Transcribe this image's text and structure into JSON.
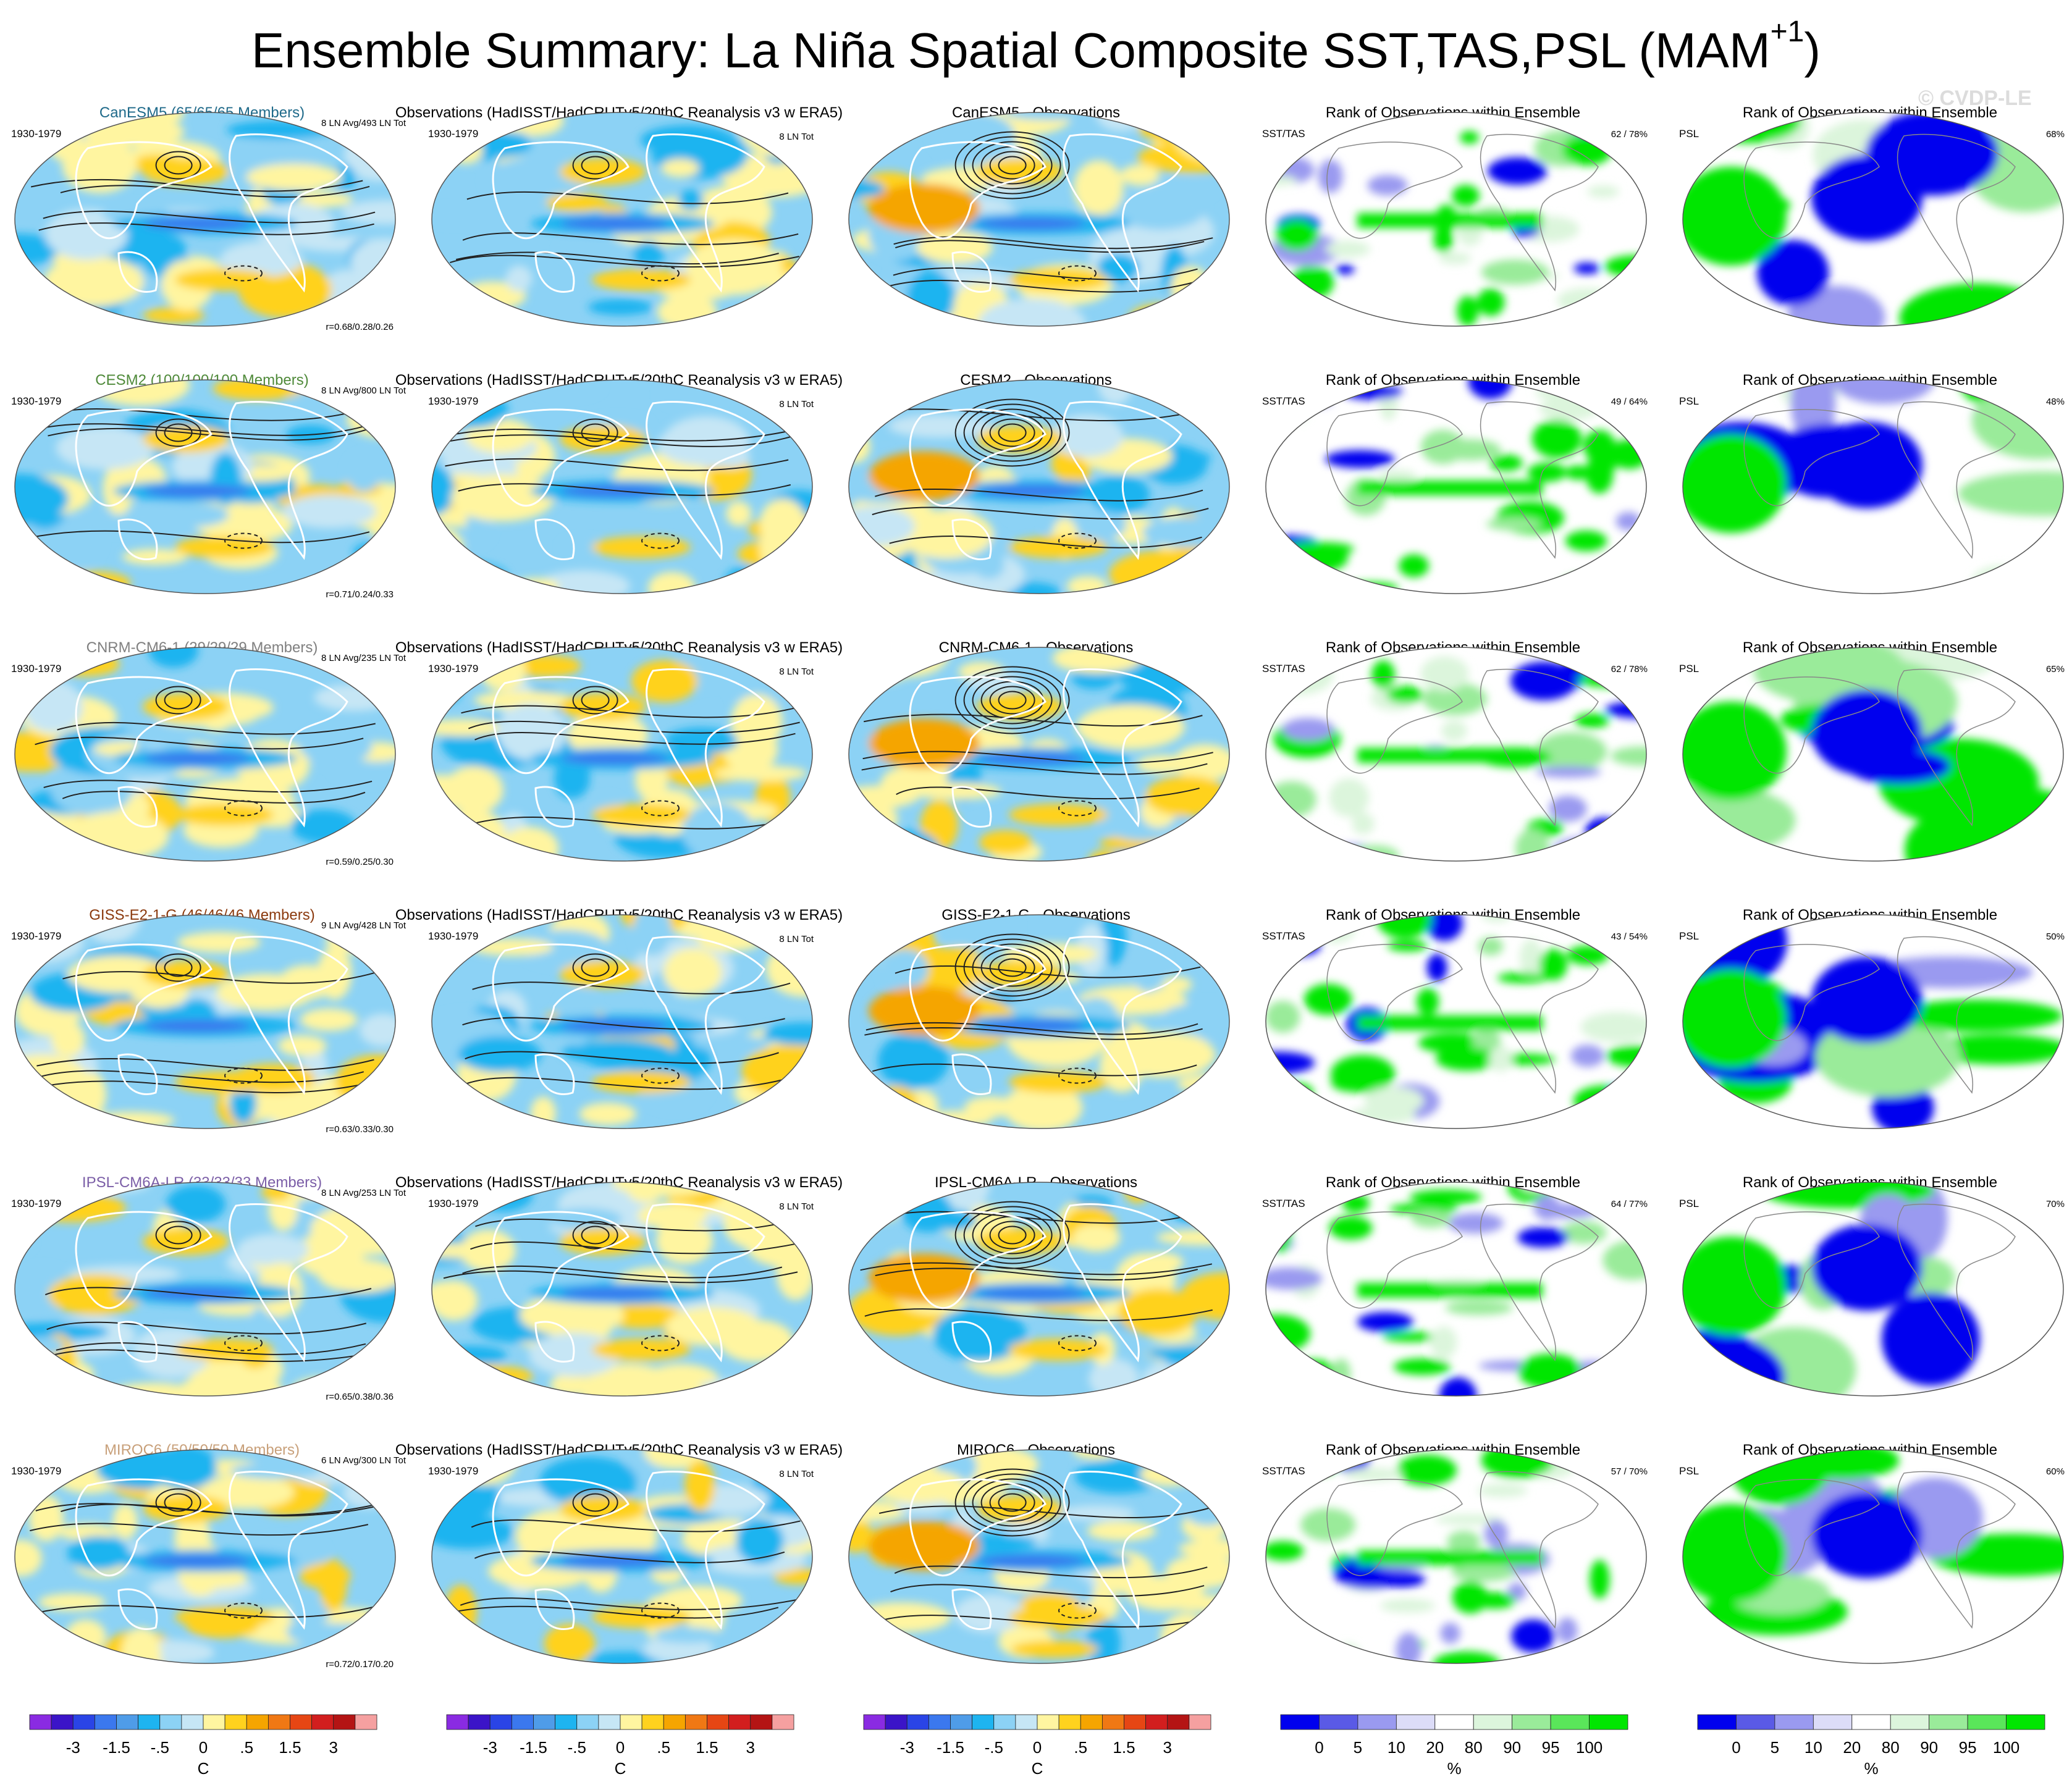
{
  "title": {
    "main": "Ensemble Summary: La Niña Spatial Composite SST,TAS,PSL (MAM",
    "superscript": "+1",
    "close": ")"
  },
  "watermark": "© CVDP-LE",
  "chart_data": {
    "type": "heatmap",
    "column_titles": {
      "observations": "Observations (HadISST/HadCRUTv5/20thC Reanalysis v3 w ERA5)",
      "diff_suffix": " - Observations",
      "rank": "Rank of Observations within Ensemble"
    },
    "period": "1930-1979",
    "obs_tot": "8 LN Tot",
    "rank_label_sst": "SST/TAS",
    "rank_label_psl": "PSL",
    "rows": [
      {
        "model": "CanESM5",
        "members": "CanESM5 (65/65/65 Members)",
        "color": "#1f6a8a",
        "ln_stats": "8 LN Avg/493 LN Tot",
        "r": "r=0.68/0.28/0.26",
        "rank_sst": "62 /  78%",
        "rank_psl": "68%"
      },
      {
        "model": "CESM2",
        "members": "CESM2 (100/100/100 Members)",
        "color": "#4f8a3a",
        "ln_stats": "8 LN Avg/800 LN Tot",
        "r": "r=0.71/0.24/0.33",
        "rank_sst": "49 /  64%",
        "rank_psl": "48%"
      },
      {
        "model": "CNRM-CM6-1",
        "members": "CNRM-CM6-1 (29/29/29 Members)",
        "color": "#808080",
        "ln_stats": "8 LN Avg/235 LN Tot",
        "r": "r=0.59/0.25/0.30",
        "rank_sst": "62 /  78%",
        "rank_psl": "65%"
      },
      {
        "model": "GISS-E2-1-G",
        "members": "GISS-E2-1-G (46/46/46 Members)",
        "color": "#8b3a0e",
        "ln_stats": "9 LN Avg/428 LN Tot",
        "r": "r=0.63/0.33/0.30",
        "rank_sst": "43 /  54%",
        "rank_psl": "50%"
      },
      {
        "model": "IPSL-CM6A-LR",
        "members": "IPSL-CM6A-LR (33/33/33 Members)",
        "color": "#7b5ea7",
        "ln_stats": "8 LN Avg/253 LN Tot",
        "r": "r=0.65/0.38/0.36",
        "rank_sst": "64 /  77%",
        "rank_psl": "70%"
      },
      {
        "model": "MIROC6",
        "members": "MIROC6 (50/50/50 Members)",
        "color": "#c8a07a",
        "ln_stats": "6 LN Avg/300 LN Tot",
        "r": "r=0.72/0.17/0.20",
        "rank_sst": "57 /  70%",
        "rank_psl": "60%"
      }
    ],
    "temp_colorbar": {
      "colors": [
        "#8a2be2",
        "#3b14c8",
        "#2a44e6",
        "#3b78ee",
        "#4f9ce8",
        "#1eb4f0",
        "#8cd2f5",
        "#c6e6f5",
        "#fff5a0",
        "#ffd21e",
        "#f5a500",
        "#f07814",
        "#e64614",
        "#d21e1e",
        "#b41414",
        "#f5a0a0"
      ],
      "tick_labels": [
        "-3",
        "-1.5",
        "-.5",
        "0",
        ".5",
        "1.5",
        "3"
      ],
      "tick_edges": [
        2,
        4,
        6,
        8,
        10,
        12,
        14
      ],
      "unit": "C"
    },
    "rank_colorbar": {
      "colors": [
        "#0000ee",
        "#5a5ae6",
        "#9a9af0",
        "#dcdcf8",
        "#ffffff",
        "#dcf5dc",
        "#9aeb9a",
        "#5ae65a",
        "#00e600"
      ],
      "tick_labels": [
        "0",
        "5",
        "10",
        "20",
        "80",
        "90",
        "95",
        "100"
      ],
      "tick_edges": [
        1,
        2,
        3,
        4,
        5,
        6,
        7,
        8
      ],
      "unit": "%"
    }
  }
}
